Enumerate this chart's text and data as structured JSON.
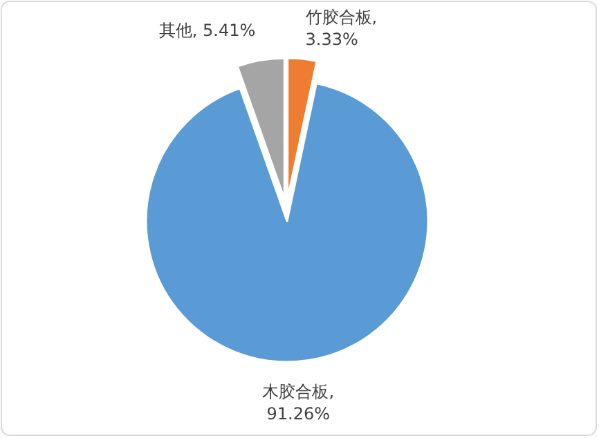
{
  "chart_data": {
    "type": "pie",
    "categories": [
      "竹胶合板",
      "木胶合板",
      "其他"
    ],
    "values": [
      3.33,
      91.26,
      5.41
    ],
    "value_labels": [
      ", 3.33%",
      ", 91.26%",
      ", 5.41%"
    ],
    "colors": [
      "#ed7d31",
      "#5b9bd5",
      "#a5a5a5"
    ]
  }
}
